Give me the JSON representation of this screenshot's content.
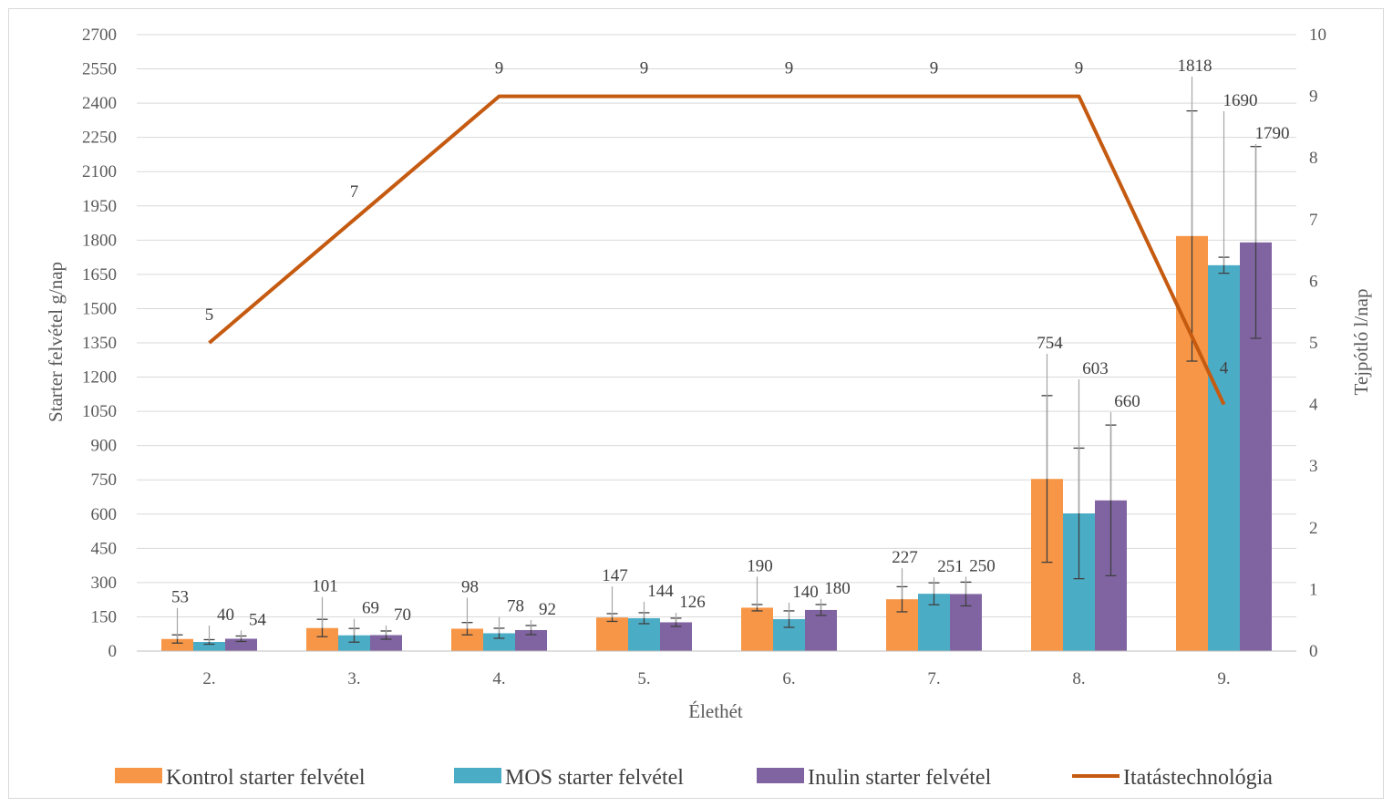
{
  "chart_data": {
    "type": "bar",
    "xlabel": "Élethét",
    "ylabel": "Starter felvétel g/nap",
    "y2label": "Tejpótló l/nap",
    "categories": [
      "2.",
      "3.",
      "4.",
      "5.",
      "6.",
      "7.",
      "8.",
      "9."
    ],
    "ylim": [
      0,
      2700
    ],
    "yticks": [
      0,
      150,
      300,
      450,
      600,
      750,
      900,
      1050,
      1200,
      1350,
      1500,
      1650,
      1800,
      1950,
      2100,
      2250,
      2400,
      2550,
      2700
    ],
    "y2lim": [
      0,
      10
    ],
    "y2ticks": [
      0,
      1,
      2,
      3,
      4,
      5,
      6,
      7,
      8,
      9,
      10
    ],
    "grid": true,
    "legend_position": "bottom",
    "series": [
      {
        "name": "Kontrol  starter felvétel",
        "type": "bar",
        "color": "#f79646",
        "values": [
          53,
          101,
          98,
          147,
          190,
          227,
          754,
          1818
        ],
        "error": [
          18,
          38,
          27,
          17,
          14,
          55,
          365,
          548
        ]
      },
      {
        "name": "MOS starter felvétel",
        "type": "bar",
        "color": "#4bacc6",
        "values": [
          40,
          69,
          78,
          144,
          140,
          251,
          603,
          1690
        ],
        "error": [
          10,
          30,
          22,
          24,
          36,
          48,
          286,
          35
        ]
      },
      {
        "name": "Inulin starter felvétel",
        "type": "bar",
        "color": "#8064a2",
        "values": [
          54,
          70,
          92,
          126,
          180,
          250,
          660,
          1790
        ],
        "error": [
          12,
          18,
          20,
          18,
          24,
          52,
          330,
          420
        ]
      },
      {
        "name": "Itatástechnológia",
        "type": "line",
        "axis": "secondary",
        "color": "#c55a11",
        "values": [
          5,
          7,
          9,
          9,
          9,
          9,
          9,
          4
        ]
      }
    ]
  }
}
